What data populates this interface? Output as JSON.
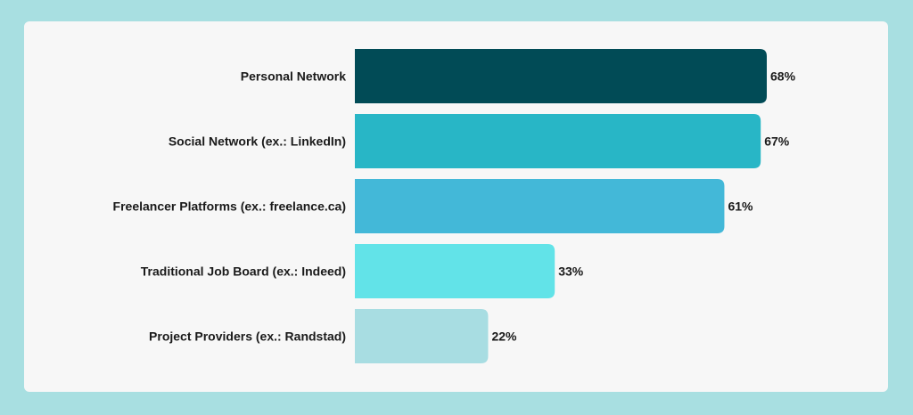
{
  "chart_data": {
    "type": "bar",
    "orientation": "horizontal",
    "categories": [
      "Personal Network",
      "Social Network (ex.: LinkedIn)",
      "Freelancer Platforms (ex.: freelance.ca)",
      "Traditional Job Board (ex.: Indeed)",
      "Project Providers (ex.: Randstad)"
    ],
    "values": [
      68,
      67,
      61,
      33,
      22
    ],
    "value_labels": [
      "68%",
      "67%",
      "61%",
      "33%",
      "22%"
    ],
    "colors": [
      "#014b56",
      "#28b6c6",
      "#43b8d8",
      "#62e3e8",
      "#a8dde2"
    ],
    "xlim": [
      0,
      68
    ],
    "grid": false,
    "legend": "none"
  }
}
